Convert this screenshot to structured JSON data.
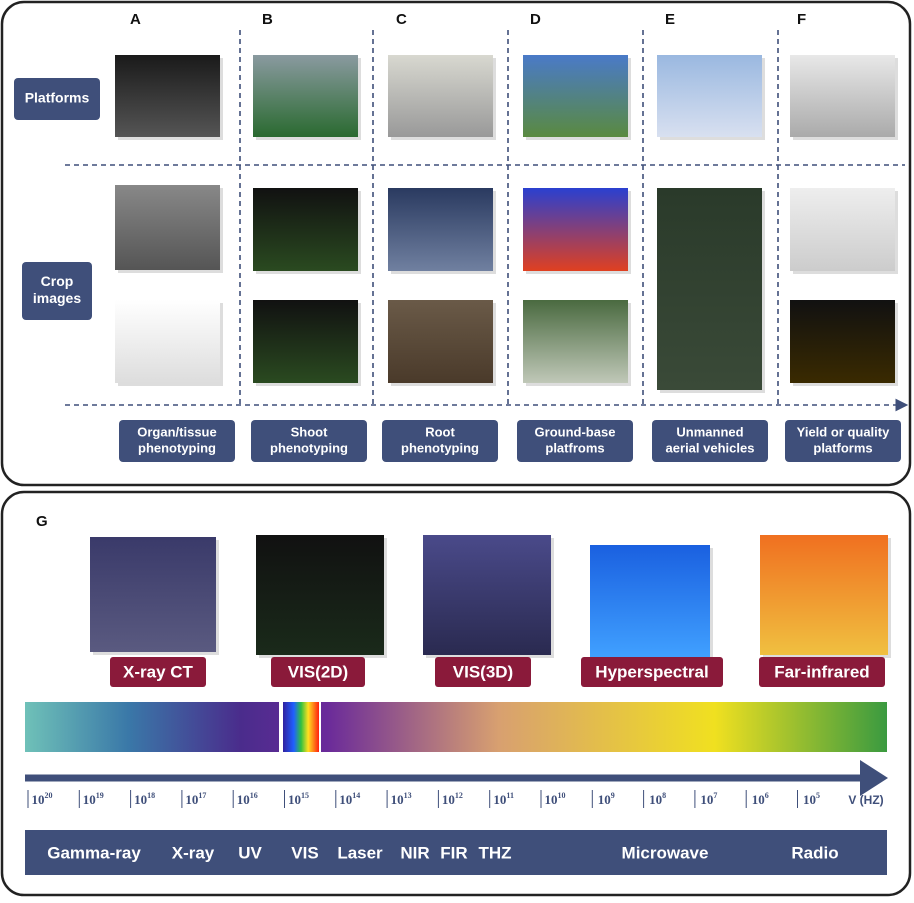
{
  "top_panel": {
    "columns": [
      {
        "letter": "A",
        "label": [
          "Organ/tissue",
          "phenotyping"
        ]
      },
      {
        "letter": "B",
        "label": [
          "Shoot",
          "phenotyping"
        ]
      },
      {
        "letter": "C",
        "label": [
          "Root",
          "phenotyping"
        ]
      },
      {
        "letter": "D",
        "label": [
          "Ground-base",
          "platfroms"
        ]
      },
      {
        "letter": "E",
        "label": [
          "Unmanned",
          "aerial vehicles"
        ]
      },
      {
        "letter": "F",
        "label": [
          "Yield or quality",
          "platforms"
        ]
      }
    ],
    "rows": [
      {
        "label": [
          "Platforms"
        ]
      },
      {
        "label": [
          "Crop",
          "images"
        ]
      }
    ]
  },
  "bottom_panel": {
    "letter": "G",
    "images": [
      "X-ray CT",
      "VIS(2D)",
      "VIS(3D)",
      "Hyperspectral",
      "Far-infrared"
    ],
    "axis_ticks": [
      {
        "base": "10",
        "exponent": "20"
      },
      {
        "base": "10",
        "exponent": "19"
      },
      {
        "base": "10",
        "exponent": "18"
      },
      {
        "base": "10",
        "exponent": "17"
      },
      {
        "base": "10",
        "exponent": "16"
      },
      {
        "base": "10",
        "exponent": "15"
      },
      {
        "base": "10",
        "exponent": "14"
      },
      {
        "base": "10",
        "exponent": "13"
      },
      {
        "base": "10",
        "exponent": "12"
      },
      {
        "base": "10",
        "exponent": "11"
      },
      {
        "base": "10",
        "exponent": "10"
      },
      {
        "base": "10",
        "exponent": "9"
      },
      {
        "base": "10",
        "exponent": "8"
      },
      {
        "base": "10",
        "exponent": "7"
      },
      {
        "base": "10",
        "exponent": "6"
      },
      {
        "base": "10",
        "exponent": "5"
      }
    ],
    "axis_unit": "V (HZ)",
    "bands": [
      "Gamma-ray",
      "X-ray",
      "UV",
      "VIS",
      "Laser",
      "NIR",
      "FIR",
      "THZ",
      "Microwave",
      "Radio"
    ]
  }
}
